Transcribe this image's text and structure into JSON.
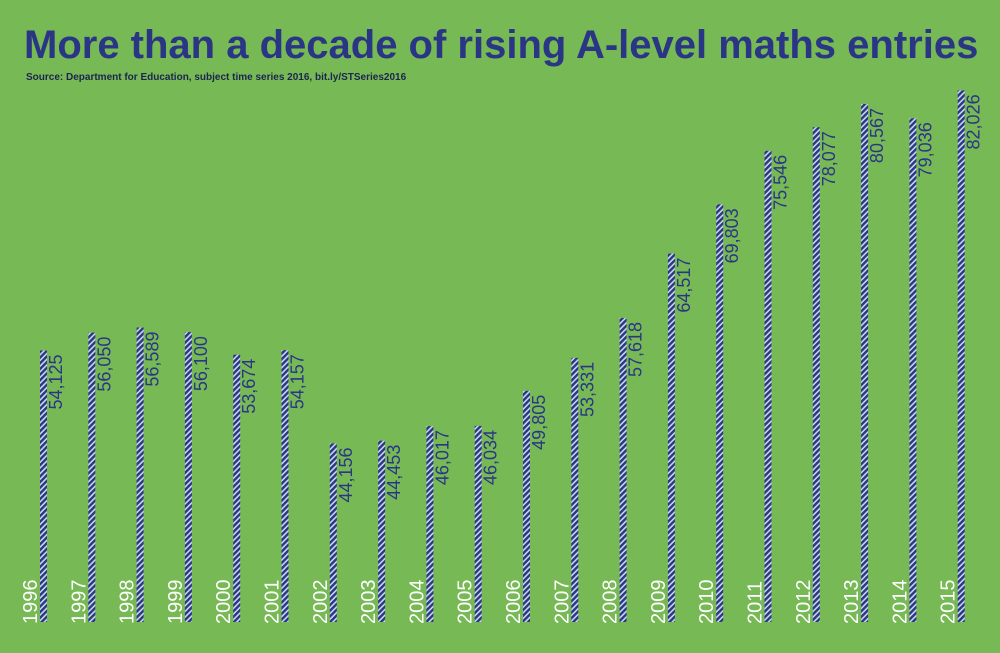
{
  "chart_data": {
    "type": "bar",
    "title": "More than a decade of rising A-level maths entries",
    "subtitle": "Source: Department for Education, subject time series 2016, bit.ly/STSeries2016",
    "categories": [
      "1996",
      "1997",
      "1998",
      "1999",
      "2000",
      "2001",
      "2002",
      "2003",
      "2004",
      "2005",
      "2006",
      "2007",
      "2008",
      "2009",
      "2010",
      "2011",
      "2012",
      "2013",
      "2014",
      "2015"
    ],
    "values": [
      54125,
      56050,
      56589,
      56100,
      53674,
      54157,
      44156,
      44453,
      46017,
      46034,
      49805,
      53331,
      57618,
      64517,
      69803,
      75546,
      78077,
      80567,
      79036,
      82026
    ],
    "value_labels": [
      "54,125",
      "56,050",
      "56,589",
      "56,100",
      "53,674",
      "54,157",
      "44,156",
      "44,453",
      "46,017",
      "46,034",
      "49,805",
      "53,331",
      "57,618",
      "64,517",
      "69,803",
      "75,546",
      "78,077",
      "80,567",
      "79,036",
      "82,026"
    ],
    "color": "#2a3586",
    "ylim": [
      25000,
      84000
    ]
  }
}
